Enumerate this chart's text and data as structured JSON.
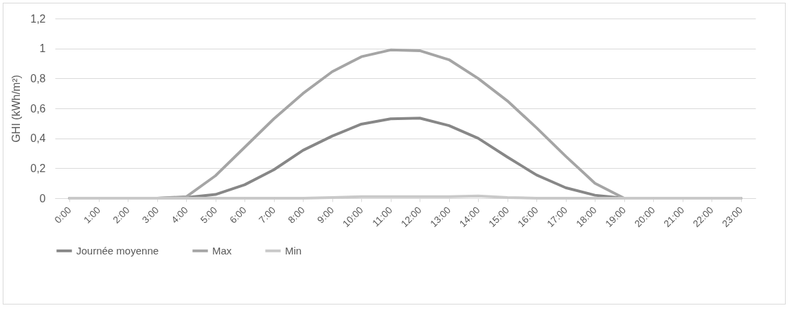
{
  "chart_data": {
    "type": "line",
    "ylabel": "GHI (kWh/m²)",
    "categories": [
      "0:00",
      "1:00",
      "2:00",
      "3:00",
      "4:00",
      "5:00",
      "6:00",
      "7:00",
      "8:00",
      "9:00",
      "10:00",
      "11:00",
      "12:00",
      "13:00",
      "14:00",
      "15:00",
      "16:00",
      "17:00",
      "18:00",
      "19:00",
      "20:00",
      "21:00",
      "22:00",
      "23:00"
    ],
    "series": [
      {
        "name": "Journée moyenne",
        "color": "#878787",
        "values": [
          0,
          0,
          0,
          0,
          0.005,
          0.025,
          0.09,
          0.19,
          0.32,
          0.415,
          0.495,
          0.53,
          0.535,
          0.485,
          0.4,
          0.275,
          0.155,
          0.07,
          0.02,
          0,
          0,
          0,
          0,
          0
        ]
      },
      {
        "name": "Max",
        "color": "#a5a5a5",
        "values": [
          0,
          0,
          0,
          0,
          0.01,
          0.15,
          0.34,
          0.53,
          0.7,
          0.845,
          0.945,
          0.99,
          0.985,
          0.925,
          0.8,
          0.65,
          0.47,
          0.28,
          0.1,
          0,
          0,
          0,
          0,
          0
        ]
      },
      {
        "name": "Min",
        "color": "#c9c9c9",
        "values": [
          0,
          0,
          0,
          0,
          0,
          0,
          0,
          0,
          0,
          0.005,
          0.01,
          0.01,
          0.01,
          0.01,
          0.015,
          0.005,
          0,
          0,
          0,
          0,
          0,
          0,
          0,
          0
        ]
      }
    ],
    "ylim": [
      0,
      1.2
    ],
    "yticks": [
      {
        "value": 0,
        "label": "0"
      },
      {
        "value": 0.2,
        "label": "0,2"
      },
      {
        "value": 0.4,
        "label": "0,4"
      },
      {
        "value": 0.6,
        "label": "0,6"
      },
      {
        "value": 0.8,
        "label": "0,8"
      },
      {
        "value": 1,
        "label": "1"
      },
      {
        "value": 1.2,
        "label": "1,2"
      }
    ],
    "grid": "y",
    "legend": "bottom",
    "marker": "none",
    "line_style": "solid"
  }
}
